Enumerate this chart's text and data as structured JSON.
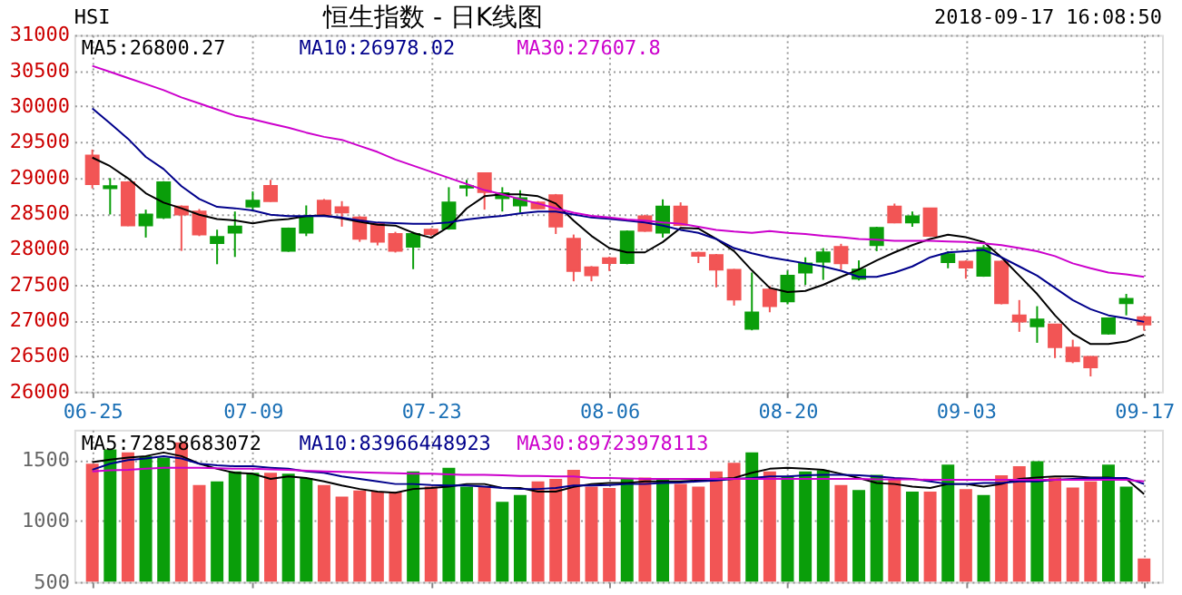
{
  "chart_data": [
    {
      "type": "candlestick",
      "title": "恒生指数 - 日K线图",
      "annotations": [
        "HSI",
        "2018-09-17 16:08:50"
      ],
      "categories": [
        "06-25",
        null,
        null,
        null,
        null,
        null,
        null,
        null,
        null,
        "07-09",
        null,
        null,
        null,
        null,
        null,
        null,
        null,
        null,
        null,
        "07-23",
        null,
        null,
        null,
        null,
        null,
        null,
        null,
        null,
        null,
        "08-06",
        null,
        null,
        null,
        null,
        null,
        null,
        null,
        null,
        null,
        "08-20",
        null,
        null,
        null,
        null,
        null,
        null,
        null,
        null,
        null,
        "09-03",
        null,
        null,
        null,
        null,
        null,
        null,
        null,
        null,
        null,
        "09-17"
      ],
      "ohlc": [
        [
          29308,
          29393,
          28849,
          28908
        ],
        [
          28850,
          28993,
          28483,
          28880
        ],
        [
          28934,
          28950,
          28320,
          28330
        ],
        [
          28330,
          28551,
          28160,
          28483
        ],
        [
          28440,
          28950,
          28420,
          28934
        ],
        [
          28593,
          28610,
          27973,
          28483
        ],
        [
          28525,
          28560,
          28180,
          28202
        ],
        [
          28083,
          28270,
          27786,
          28168
        ],
        [
          28228,
          28525,
          27888,
          28313
        ],
        [
          28593,
          28806,
          28525,
          28678
        ],
        [
          28882,
          28968,
          28660,
          28670
        ],
        [
          27973,
          28300,
          27960,
          28287
        ],
        [
          28228,
          28610,
          28180,
          28440
        ],
        [
          28678,
          28700,
          28470,
          28483
        ],
        [
          28585,
          28670,
          28313,
          28510
        ],
        [
          28440,
          28460,
          28100,
          28143
        ],
        [
          28355,
          28370,
          28050,
          28100
        ],
        [
          28210,
          28240,
          27950,
          27973
        ],
        [
          28032,
          28240,
          27717,
          28210
        ],
        [
          28270,
          28290,
          28180,
          28210
        ],
        [
          28287,
          28865,
          28270,
          28652
        ],
        [
          28860,
          28968,
          28737,
          28880
        ],
        [
          29060,
          29060,
          28551,
          28797
        ],
        [
          28712,
          28865,
          28525,
          28780
        ],
        [
          28610,
          28823,
          28508,
          28712
        ],
        [
          28652,
          28670,
          28560,
          28568
        ],
        [
          28754,
          28770,
          28210,
          28313
        ],
        [
          28143,
          28202,
          27547,
          27692
        ],
        [
          27743,
          27760,
          27547,
          27632
        ],
        [
          27871,
          27890,
          27692,
          27803
        ],
        [
          27803,
          28260,
          27786,
          28244
        ],
        [
          28457,
          28480,
          28240,
          28253
        ],
        [
          28228,
          28695,
          28160,
          28593
        ],
        [
          28593,
          28653,
          28320,
          28338
        ],
        [
          27947,
          27960,
          27803,
          27904
        ],
        [
          27913,
          27930,
          27462,
          27709
        ],
        [
          27709,
          27720,
          27207,
          27292
        ],
        [
          26880,
          27670,
          26860,
          27110
        ],
        [
          27430,
          27481,
          27113,
          27198
        ],
        [
          27267,
          27695,
          27224,
          27626
        ],
        [
          27669,
          27883,
          27498,
          27798
        ],
        [
          27823,
          28012,
          27567,
          27952
        ],
        [
          28029,
          28072,
          27712,
          27798
        ],
        [
          27584,
          27840,
          27558,
          27712
        ],
        [
          28054,
          28311,
          27969,
          28294
        ],
        [
          28594,
          28636,
          28360,
          28371
        ],
        [
          28371,
          28525,
          28311,
          28457
        ],
        [
          28568,
          28568,
          28170,
          28183
        ],
        [
          27815,
          27969,
          27729,
          27926
        ],
        [
          27823,
          27840,
          27584,
          27738
        ],
        [
          27626,
          28054,
          27610,
          28012
        ],
        [
          27823,
          27840,
          27224,
          27241
        ],
        [
          27070,
          27284,
          26839,
          26984
        ],
        [
          26916,
          27198,
          26685,
          27010
        ],
        [
          26942,
          26950,
          26471,
          26625
        ],
        [
          26616,
          26728,
          26400,
          26428
        ],
        [
          26488,
          26500,
          26214,
          26342
        ],
        [
          26813,
          27030,
          26800,
          27027
        ],
        [
          27241,
          27370,
          27070,
          27301
        ],
        [
          27044,
          27070,
          26856,
          26942
        ]
      ],
      "colors": [
        "#f25555",
        "#0a9e0a",
        "#f25555",
        "#0a9e0a",
        "#0a9e0a",
        "#f25555",
        "#f25555",
        "#0a9e0a",
        "#0a9e0a",
        "#0a9e0a",
        "#f25555",
        "#0a9e0a",
        "#0a9e0a",
        "#f25555",
        "#f25555",
        "#f25555",
        "#f25555",
        "#f25555",
        "#0a9e0a",
        "#f25555",
        "#0a9e0a",
        "#0a9e0a",
        "#f25555",
        "#0a9e0a",
        "#0a9e0a",
        "#f25555",
        "#f25555",
        "#f25555",
        "#f25555",
        "#f25555",
        "#0a9e0a",
        "#f25555",
        "#0a9e0a",
        "#f25555",
        "#f25555",
        "#f25555",
        "#f25555",
        "#0a9e0a",
        "#f25555",
        "#0a9e0a",
        "#0a9e0a",
        "#0a9e0a",
        "#f25555",
        "#0a9e0a",
        "#0a9e0a",
        "#f25555",
        "#0a9e0a",
        "#f25555",
        "#0a9e0a",
        "#f25555",
        "#0a9e0a",
        "#f25555",
        "#f25555",
        "#0a9e0a",
        "#f25555",
        "#f25555",
        "#f25555",
        "#0a9e0a",
        "#0a9e0a",
        "#f25555"
      ],
      "series": [
        {
          "type": "line",
          "name": "MA5:26800.27",
          "color": "#000000",
          "values": [
            29280,
            29160,
            28990,
            28780,
            28650,
            28570,
            28480,
            28420,
            28400,
            28360,
            28400,
            28420,
            28460,
            28470,
            28430,
            28380,
            28340,
            28328,
            28226,
            28157,
            28311,
            28568,
            28739,
            28765,
            28765,
            28739,
            28637,
            28397,
            28183,
            28012,
            27952,
            27952,
            28097,
            28294,
            28286,
            28140,
            27969,
            27700,
            27455,
            27395,
            27412,
            27498,
            27609,
            27712,
            27840,
            27952,
            28054,
            28140,
            28200,
            28166,
            28097,
            27883,
            27626,
            27370,
            27070,
            26813,
            26668,
            26668,
            26702,
            26800
          ]
        },
        {
          "type": "line",
          "name": "MA10:26978.02",
          "color": "#00008b",
          "values": [
            29970,
            29760,
            29545,
            29290,
            29120,
            28880,
            28700,
            28590,
            28570,
            28540,
            28480,
            28460,
            28460,
            28460,
            28440,
            28400,
            28370,
            28363,
            28354,
            28354,
            28371,
            28414,
            28440,
            28465,
            28500,
            28525,
            28525,
            28483,
            28440,
            28423,
            28397,
            28371,
            28328,
            28268,
            28226,
            28140,
            28012,
            27940,
            27883,
            27840,
            27798,
            27755,
            27695,
            27609,
            27609,
            27669,
            27755,
            27883,
            27952,
            27969,
            27986,
            27883,
            27755,
            27626,
            27455,
            27284,
            27156,
            27070,
            27027,
            26978
          ]
        },
        {
          "type": "line",
          "name": "MA30:27607.8",
          "color": "#cc00cc",
          "values": [
            30566,
            30481,
            30396,
            30311,
            30226,
            30124,
            30039,
            29954,
            29869,
            29818,
            29758,
            29700,
            29631,
            29571,
            29529,
            29444,
            29359,
            29253,
            29167,
            29082,
            28996,
            28910,
            28825,
            28765,
            28697,
            28637,
            28568,
            28508,
            28465,
            28440,
            28414,
            28397,
            28371,
            28354,
            28311,
            28268,
            28243,
            28225,
            28251,
            28226,
            28208,
            28183,
            28166,
            28140,
            28131,
            28114,
            28114,
            28114,
            28106,
            28097,
            28080,
            28054,
            28012,
            27969,
            27900,
            27798,
            27729,
            27669,
            27643,
            27608
          ]
        }
      ],
      "ylim": [
        26000,
        31000
      ],
      "yticks": [
        26000,
        26500,
        27000,
        27500,
        28000,
        28500,
        29000,
        29500,
        30000,
        30500,
        31000
      ],
      "grid": true,
      "legend": "top left"
    },
    {
      "type": "bar",
      "categories": [
        null,
        null,
        null,
        null,
        null,
        null,
        null,
        null,
        null,
        null,
        null,
        null,
        null,
        null,
        null,
        null,
        null,
        null,
        null,
        null,
        null,
        null,
        null,
        null,
        null,
        null,
        null,
        null,
        null,
        null,
        null,
        null,
        null,
        null,
        null,
        null,
        null,
        null,
        null,
        null,
        null,
        null,
        null,
        null,
        null,
        null,
        null,
        null,
        null,
        null,
        null,
        null,
        null,
        null,
        null,
        null,
        null,
        null,
        null,
        null
      ],
      "series": [
        {
          "type": "bar",
          "colors": [
            "#f25555",
            "#0a9e0a",
            "#f25555",
            "#0a9e0a",
            "#0a9e0a",
            "#f25555",
            "#f25555",
            "#0a9e0a",
            "#0a9e0a",
            "#0a9e0a",
            "#f25555",
            "#0a9e0a",
            "#0a9e0a",
            "#f25555",
            "#f25555",
            "#f25555",
            "#f25555",
            "#f25555",
            "#0a9e0a",
            "#f25555",
            "#0a9e0a",
            "#0a9e0a",
            "#f25555",
            "#0a9e0a",
            "#0a9e0a",
            "#f25555",
            "#f25555",
            "#f25555",
            "#f25555",
            "#f25555",
            "#0a9e0a",
            "#f25555",
            "#0a9e0a",
            "#f25555",
            "#f25555",
            "#f25555",
            "#f25555",
            "#0a9e0a",
            "#f25555",
            "#0a9e0a",
            "#0a9e0a",
            "#0a9e0a",
            "#f25555",
            "#0a9e0a",
            "#0a9e0a",
            "#f25555",
            "#0a9e0a",
            "#f25555",
            "#0a9e0a",
            "#f25555",
            "#0a9e0a",
            "#f25555",
            "#f25555",
            "#0a9e0a",
            "#f25555",
            "#f25555",
            "#f25555",
            "#0a9e0a",
            "#0a9e0a",
            "#f25555"
          ],
          "values": [
            1471,
            1588,
            1563,
            1533,
            1521,
            1646,
            1296,
            1325,
            1408,
            1396,
            1396,
            1388,
            1354,
            1296,
            1200,
            1250,
            1242,
            1242,
            1408,
            1283,
            1438,
            1283,
            1283,
            1158,
            1213,
            1325,
            1346,
            1421,
            1283,
            1271,
            1346,
            1358,
            1346,
            1304,
            1283,
            1408,
            1479,
            1563,
            1408,
            1367,
            1408,
            1417,
            1296,
            1254,
            1379,
            1338,
            1242,
            1242,
            1463,
            1263,
            1213,
            1375,
            1450,
            1492,
            1358,
            1275,
            1325,
            1463,
            1283,
            692
          ]
        },
        {
          "type": "line",
          "name": "MA5:72858683072",
          "color": "#000000",
          "values": [
            1483,
            1504,
            1521,
            1533,
            1563,
            1533,
            1471,
            1429,
            1396,
            1388,
            1346,
            1367,
            1354,
            1325,
            1292,
            1263,
            1242,
            1233,
            1263,
            1271,
            1283,
            1304,
            1304,
            1271,
            1271,
            1242,
            1242,
            1280,
            1304,
            1313,
            1313,
            1325,
            1325,
            1325,
            1333,
            1346,
            1354,
            1396,
            1429,
            1438,
            1429,
            1421,
            1388,
            1354,
            1313,
            1304,
            1283,
            1271,
            1304,
            1304,
            1283,
            1304,
            1346,
            1358,
            1367,
            1367,
            1358,
            1358,
            1346,
            1221
          ]
        },
        {
          "type": "line",
          "name": "MA10:83966448923",
          "color": "#00008b",
          "values": [
            1421,
            1471,
            1500,
            1513,
            1533,
            1513,
            1471,
            1458,
            1450,
            1450,
            1438,
            1429,
            1408,
            1396,
            1367,
            1346,
            1325,
            1304,
            1304,
            1296,
            1292,
            1292,
            1283,
            1271,
            1263,
            1263,
            1271,
            1292,
            1292,
            1296,
            1304,
            1304,
            1313,
            1317,
            1325,
            1333,
            1346,
            1354,
            1367,
            1367,
            1375,
            1379,
            1379,
            1375,
            1367,
            1354,
            1346,
            1325,
            1304,
            1304,
            1313,
            1313,
            1325,
            1325,
            1338,
            1346,
            1354,
            1354,
            1354,
            1304
          ]
        },
        {
          "type": "line",
          "name": "MA30:89723978113",
          "color": "#cc00cc",
          "values": [
            1408,
            1417,
            1421,
            1429,
            1438,
            1438,
            1438,
            1433,
            1429,
            1429,
            1425,
            1421,
            1413,
            1408,
            1404,
            1400,
            1396,
            1392,
            1388,
            1388,
            1383,
            1379,
            1379,
            1375,
            1371,
            1371,
            1367,
            1367,
            1354,
            1354,
            1350,
            1346,
            1346,
            1346,
            1346,
            1346,
            1346,
            1346,
            1346,
            1346,
            1346,
            1346,
            1346,
            1346,
            1342,
            1342,
            1342,
            1338,
            1338,
            1338,
            1338,
            1338,
            1338,
            1338,
            1338,
            1338,
            1338,
            1338,
            1338,
            1325
          ]
        }
      ],
      "ylim": [
        500,
        1750
      ],
      "yticks": [
        500,
        1000,
        1500
      ],
      "grid": true,
      "legend": "top left",
      "tick_labels": "y"
    }
  ]
}
